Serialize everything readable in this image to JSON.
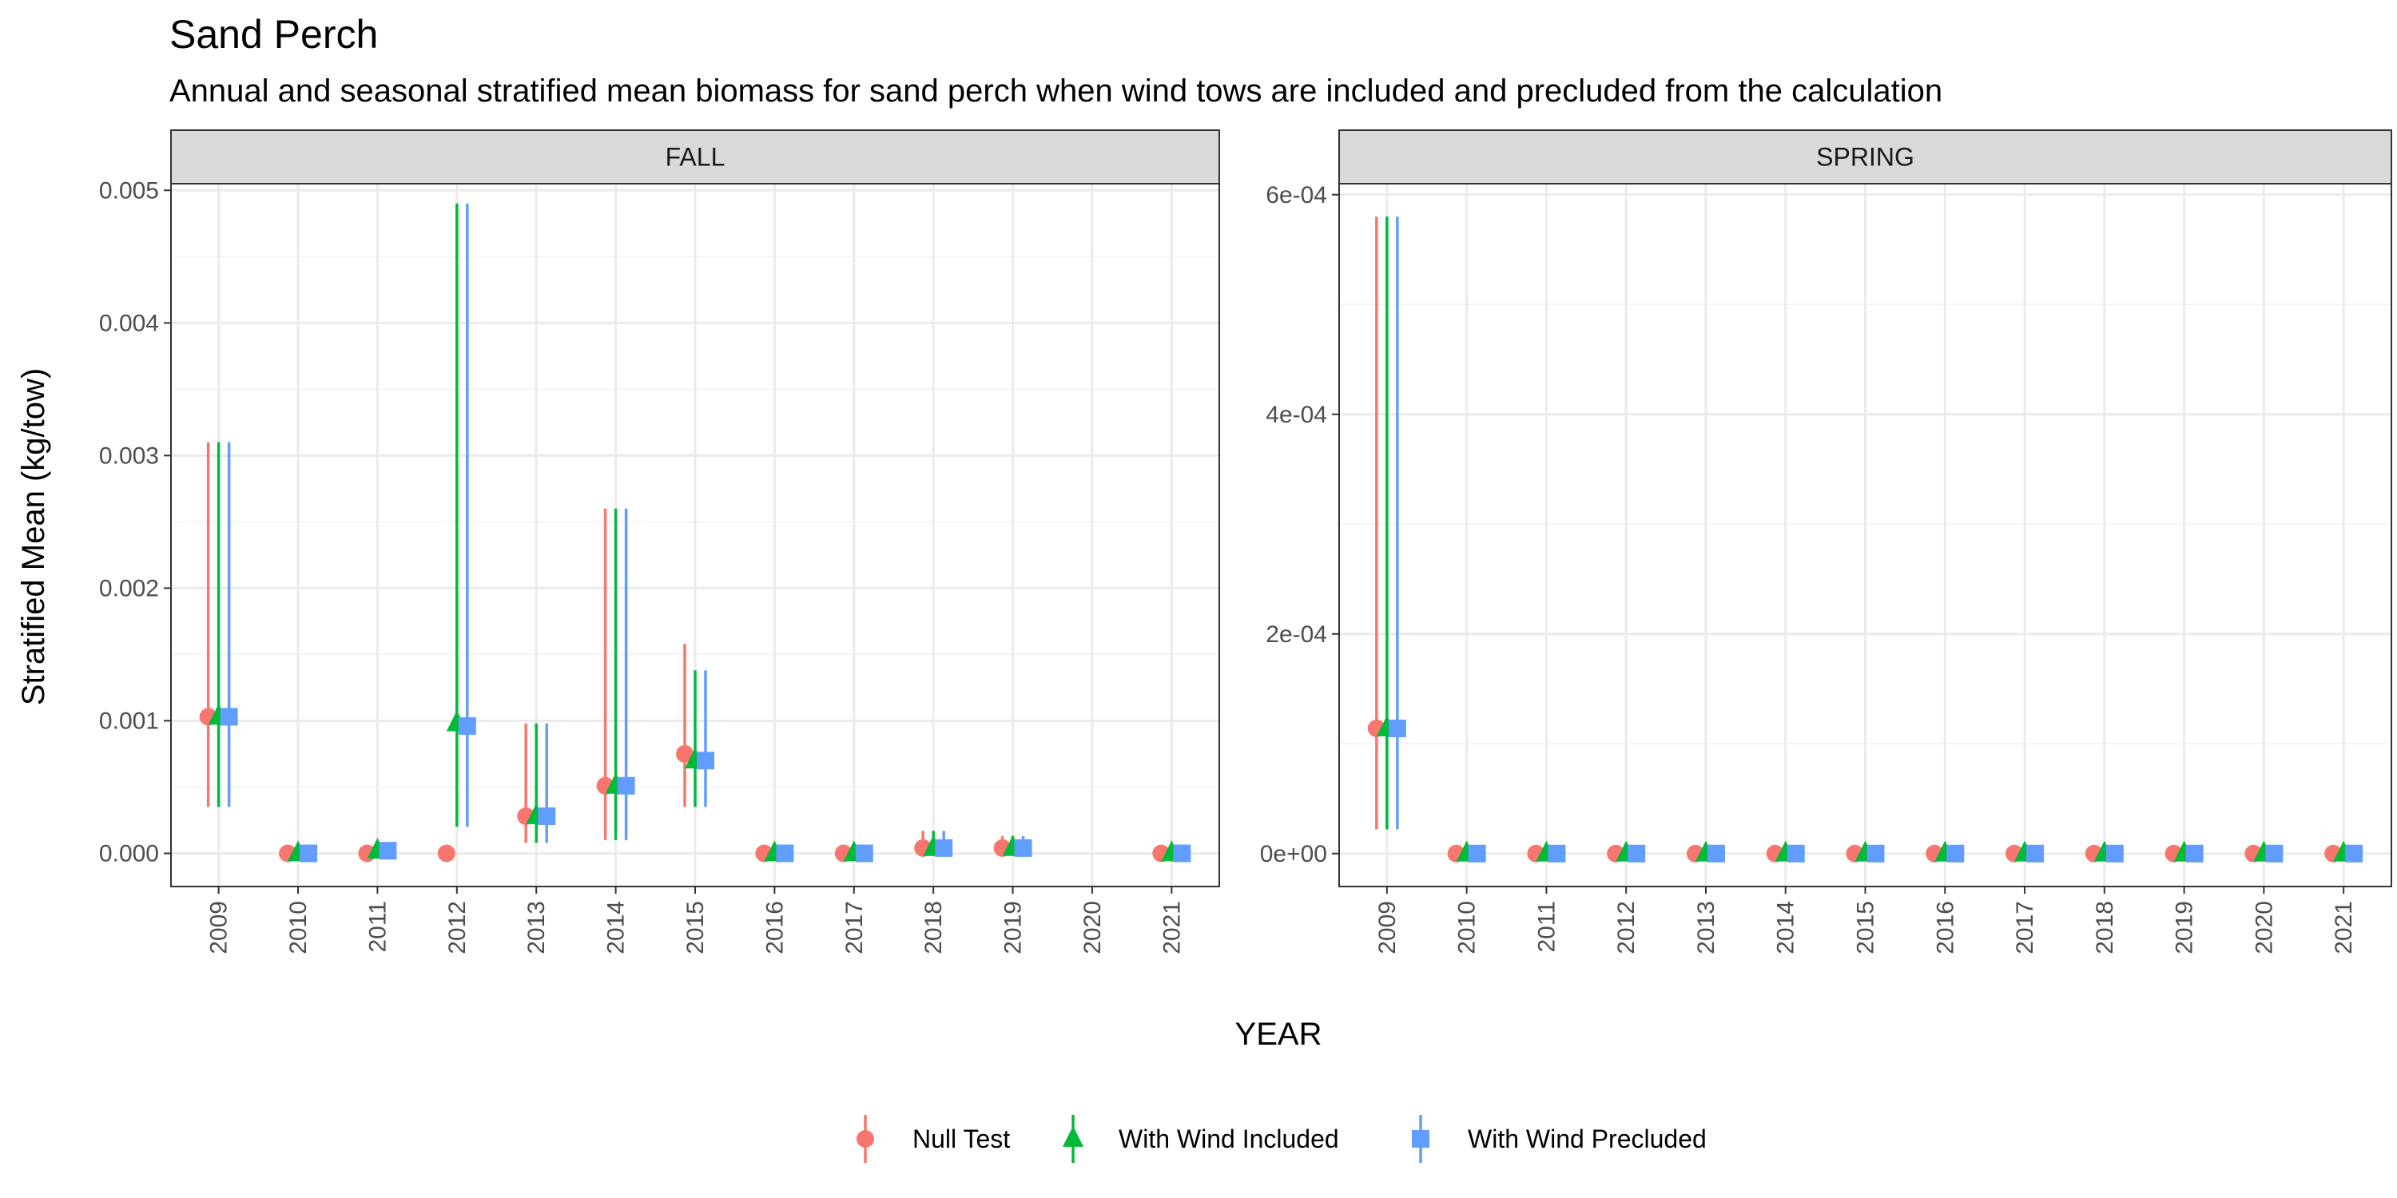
{
  "chart_data": {
    "type": "scatter",
    "title": "Sand Perch",
    "subtitle": "Annual and seasonal stratified mean biomass for sand perch when wind tows are included and precluded from the calculation",
    "xlabel": "YEAR",
    "ylabel": "Stratified Mean (kg/tow)",
    "grid": true,
    "legend_position": "bottom",
    "series": [
      {
        "name": "Null Test",
        "color": "#F8766D",
        "shape": "circle"
      },
      {
        "name": "With Wind Included",
        "color": "#00BA38",
        "shape": "triangle"
      },
      {
        "name": "With Wind Precluded",
        "color": "#619CFF",
        "shape": "square"
      }
    ],
    "panels": [
      {
        "label": "FALL",
        "x": [
          "2009",
          "2010",
          "2011",
          "2012",
          "2013",
          "2014",
          "2015",
          "2016",
          "2017",
          "2018",
          "2019",
          "2020",
          "2021"
        ],
        "ylim": [
          -0.00025,
          0.00505
        ],
        "yticks": [
          0,
          0.001,
          0.002,
          0.003,
          0.004,
          0.005
        ],
        "ytick_labels": [
          "0.000",
          "0.001",
          "0.002",
          "0.003",
          "0.004",
          "0.005"
        ],
        "data": [
          {
            "series": "Null Test",
            "points": [
              {
                "x": "2009",
                "y": 0.00103,
                "lo": 0.00035,
                "hi": 0.0031
              },
              {
                "x": "2010",
                "y": 0,
                "lo": 0,
                "hi": 0
              },
              {
                "x": "2011",
                "y": 0,
                "lo": 0,
                "hi": 0
              },
              {
                "x": "2012",
                "y": 0,
                "lo": 0,
                "hi": 0
              },
              {
                "x": "2013",
                "y": 0.00028,
                "lo": 8e-05,
                "hi": 0.00098
              },
              {
                "x": "2014",
                "y": 0.00051,
                "lo": 0.0001,
                "hi": 0.0026
              },
              {
                "x": "2015",
                "y": 0.00075,
                "lo": 0.00035,
                "hi": 0.00158
              },
              {
                "x": "2016",
                "y": 0,
                "lo": 0,
                "hi": 0
              },
              {
                "x": "2017",
                "y": 0,
                "lo": 0,
                "hi": 0
              },
              {
                "x": "2018",
                "y": 4e-05,
                "lo": 0,
                "hi": 0.00017
              },
              {
                "x": "2019",
                "y": 4e-05,
                "lo": 0,
                "hi": 0.00013
              },
              {
                "x": "2021",
                "y": 0,
                "lo": 0,
                "hi": 0
              }
            ]
          },
          {
            "series": "With Wind Included",
            "points": [
              {
                "x": "2009",
                "y": 0.00103,
                "lo": 0.00035,
                "hi": 0.0031
              },
              {
                "x": "2010",
                "y": 0,
                "lo": 0,
                "hi": 0
              },
              {
                "x": "2011",
                "y": 2e-05,
                "lo": 0,
                "hi": 0
              },
              {
                "x": "2012",
                "y": 0.00098,
                "lo": 0.0002,
                "hi": 0.0049
              },
              {
                "x": "2013",
                "y": 0.00028,
                "lo": 8e-05,
                "hi": 0.00098
              },
              {
                "x": "2014",
                "y": 0.00051,
                "lo": 0.0001,
                "hi": 0.0026
              },
              {
                "x": "2015",
                "y": 0.0007,
                "lo": 0.00035,
                "hi": 0.00138
              },
              {
                "x": "2016",
                "y": 0,
                "lo": 0,
                "hi": 0
              },
              {
                "x": "2017",
                "y": 0,
                "lo": 0,
                "hi": 0
              },
              {
                "x": "2018",
                "y": 4e-05,
                "lo": 0,
                "hi": 0.00017
              },
              {
                "x": "2019",
                "y": 4e-05,
                "lo": 0,
                "hi": 0.00013
              },
              {
                "x": "2021",
                "y": 0,
                "lo": 0,
                "hi": 0
              }
            ]
          },
          {
            "series": "With Wind Precluded",
            "points": [
              {
                "x": "2009",
                "y": 0.00103,
                "lo": 0.00035,
                "hi": 0.0031
              },
              {
                "x": "2010",
                "y": 0,
                "lo": 0,
                "hi": 0
              },
              {
                "x": "2011",
                "y": 2e-05,
                "lo": 0,
                "hi": 0
              },
              {
                "x": "2012",
                "y": 0.00096,
                "lo": 0.0002,
                "hi": 0.0049
              },
              {
                "x": "2013",
                "y": 0.00028,
                "lo": 8e-05,
                "hi": 0.00098
              },
              {
                "x": "2014",
                "y": 0.00051,
                "lo": 0.0001,
                "hi": 0.0026
              },
              {
                "x": "2015",
                "y": 0.0007,
                "lo": 0.00035,
                "hi": 0.00138
              },
              {
                "x": "2016",
                "y": 0,
                "lo": 0,
                "hi": 0
              },
              {
                "x": "2017",
                "y": 0,
                "lo": 0,
                "hi": 0
              },
              {
                "x": "2018",
                "y": 4e-05,
                "lo": 0,
                "hi": 0.00017
              },
              {
                "x": "2019",
                "y": 4e-05,
                "lo": 0,
                "hi": 0.00013
              },
              {
                "x": "2021",
                "y": 0,
                "lo": 0,
                "hi": 0
              }
            ]
          }
        ]
      },
      {
        "label": "SPRING",
        "x": [
          "2009",
          "2010",
          "2011",
          "2012",
          "2013",
          "2014",
          "2015",
          "2016",
          "2017",
          "2018",
          "2019",
          "2020",
          "2021"
        ],
        "ylim": [
          -3e-05,
          0.00061
        ],
        "yticks": [
          0,
          0.0002,
          0.0004,
          0.0006
        ],
        "ytick_labels": [
          "0e+00",
          "2e-04",
          "4e-04",
          "6e-04"
        ],
        "data": [
          {
            "series": "Null Test",
            "points": [
              {
                "x": "2009",
                "y": 0.000114,
                "lo": 2.2e-05,
                "hi": 0.00058
              },
              {
                "x": "2010",
                "y": 0,
                "lo": 0,
                "hi": 0
              },
              {
                "x": "2011",
                "y": 0,
                "lo": 0,
                "hi": 0
              },
              {
                "x": "2012",
                "y": 0,
                "lo": 0,
                "hi": 0
              },
              {
                "x": "2013",
                "y": 0,
                "lo": 0,
                "hi": 0
              },
              {
                "x": "2014",
                "y": 0,
                "lo": 0,
                "hi": 0
              },
              {
                "x": "2015",
                "y": 0,
                "lo": 0,
                "hi": 0
              },
              {
                "x": "2016",
                "y": 0,
                "lo": 0,
                "hi": 0
              },
              {
                "x": "2017",
                "y": 0,
                "lo": 0,
                "hi": 0
              },
              {
                "x": "2018",
                "y": 0,
                "lo": 0,
                "hi": 0
              },
              {
                "x": "2019",
                "y": 0,
                "lo": 0,
                "hi": 0
              },
              {
                "x": "2020",
                "y": 0,
                "lo": 0,
                "hi": 0
              },
              {
                "x": "2021",
                "y": 0,
                "lo": 0,
                "hi": 0
              }
            ]
          },
          {
            "series": "With Wind Included",
            "points": [
              {
                "x": "2009",
                "y": 0.000114,
                "lo": 2.2e-05,
                "hi": 0.00058
              },
              {
                "x": "2010",
                "y": 0,
                "lo": 0,
                "hi": 0
              },
              {
                "x": "2011",
                "y": 0,
                "lo": 0,
                "hi": 0
              },
              {
                "x": "2012",
                "y": 0,
                "lo": 0,
                "hi": 0
              },
              {
                "x": "2013",
                "y": 0,
                "lo": 0,
                "hi": 0
              },
              {
                "x": "2014",
                "y": 0,
                "lo": 0,
                "hi": 0
              },
              {
                "x": "2015",
                "y": 0,
                "lo": 0,
                "hi": 0
              },
              {
                "x": "2016",
                "y": 0,
                "lo": 0,
                "hi": 0
              },
              {
                "x": "2017",
                "y": 0,
                "lo": 0,
                "hi": 0
              },
              {
                "x": "2018",
                "y": 0,
                "lo": 0,
                "hi": 0
              },
              {
                "x": "2019",
                "y": 0,
                "lo": 0,
                "hi": 0
              },
              {
                "x": "2020",
                "y": 0,
                "lo": 0,
                "hi": 0
              },
              {
                "x": "2021",
                "y": 0,
                "lo": 0,
                "hi": 0
              }
            ]
          },
          {
            "series": "With Wind Precluded",
            "points": [
              {
                "x": "2009",
                "y": 0.000114,
                "lo": 2.2e-05,
                "hi": 0.00058
              },
              {
                "x": "2010",
                "y": 0,
                "lo": 0,
                "hi": 0
              },
              {
                "x": "2011",
                "y": 0,
                "lo": 0,
                "hi": 0
              },
              {
                "x": "2012",
                "y": 0,
                "lo": 0,
                "hi": 0
              },
              {
                "x": "2013",
                "y": 0,
                "lo": 0,
                "hi": 0
              },
              {
                "x": "2014",
                "y": 0,
                "lo": 0,
                "hi": 0
              },
              {
                "x": "2015",
                "y": 0,
                "lo": 0,
                "hi": 0
              },
              {
                "x": "2016",
                "y": 0,
                "lo": 0,
                "hi": 0
              },
              {
                "x": "2017",
                "y": 0,
                "lo": 0,
                "hi": 0
              },
              {
                "x": "2018",
                "y": 0,
                "lo": 0,
                "hi": 0
              },
              {
                "x": "2019",
                "y": 0,
                "lo": 0,
                "hi": 0
              },
              {
                "x": "2020",
                "y": 0,
                "lo": 0,
                "hi": 0
              },
              {
                "x": "2021",
                "y": 0,
                "lo": 0,
                "hi": 0
              }
            ]
          }
        ]
      }
    ]
  }
}
